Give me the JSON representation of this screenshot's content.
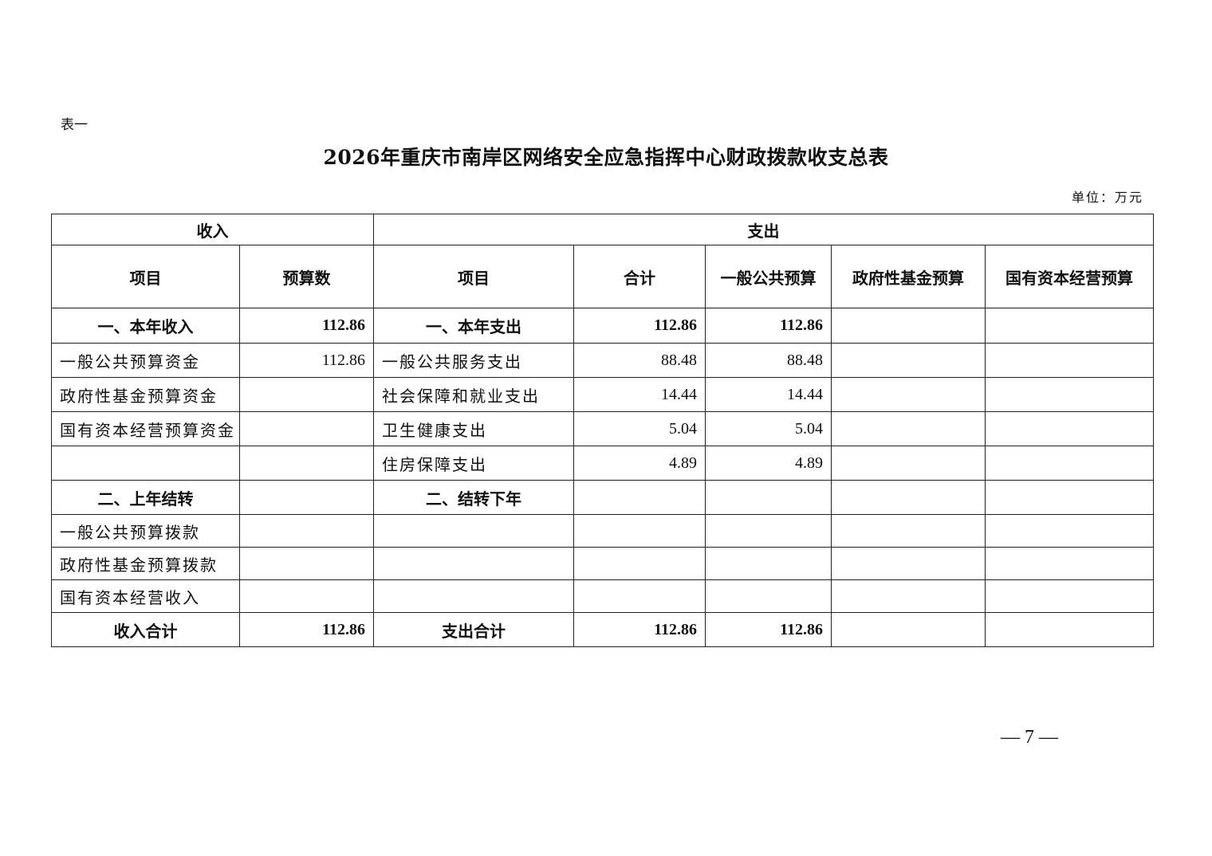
{
  "doc": {
    "table_label": "表一",
    "title": "2026年重庆市南岸区网络安全应急指挥中心财政拨款收支总表",
    "unit": "单位：万元",
    "page_number": "— 7 —"
  },
  "table": {
    "group_headers": [
      "收入",
      "支出"
    ],
    "column_headers": [
      "项目",
      "预算数",
      "项目",
      "合计",
      "一般公共预算",
      "政府性基金预算",
      "国有资本经营预算"
    ],
    "rows": [
      {
        "bold": true,
        "cells": [
          "一、本年收入",
          "112.86",
          "一、本年支出",
          "112.86",
          "112.86",
          "",
          ""
        ]
      },
      {
        "bold": false,
        "cells": [
          "一般公共预算资金",
          "112.86",
          "一般公共服务支出",
          "88.48",
          "88.48",
          "",
          ""
        ]
      },
      {
        "bold": false,
        "cells": [
          "政府性基金预算资金",
          "",
          "社会保障和就业支出",
          "14.44",
          "14.44",
          "",
          ""
        ]
      },
      {
        "bold": false,
        "cells": [
          "国有资本经营预算资金",
          "",
          "卫生健康支出",
          "5.04",
          "5.04",
          "",
          ""
        ]
      },
      {
        "bold": false,
        "cells": [
          "",
          "",
          "住房保障支出",
          "4.89",
          "4.89",
          "",
          ""
        ]
      },
      {
        "bold": true,
        "cells": [
          "二、上年结转",
          "",
          "二、结转下年",
          "",
          "",
          "",
          ""
        ]
      },
      {
        "bold": false,
        "cells": [
          "一般公共预算拨款",
          "",
          "",
          "",
          "",
          "",
          ""
        ]
      },
      {
        "bold": false,
        "cells": [
          "政府性基金预算拨款",
          "",
          "",
          "",
          "",
          "",
          ""
        ]
      },
      {
        "bold": false,
        "cells": [
          "国有资本经营收入",
          "",
          "",
          "",
          "",
          "",
          ""
        ]
      },
      {
        "bold": true,
        "cells": [
          "收入合计",
          "112.86",
          "支出合计",
          "112.86",
          "112.86",
          "",
          ""
        ]
      }
    ]
  }
}
